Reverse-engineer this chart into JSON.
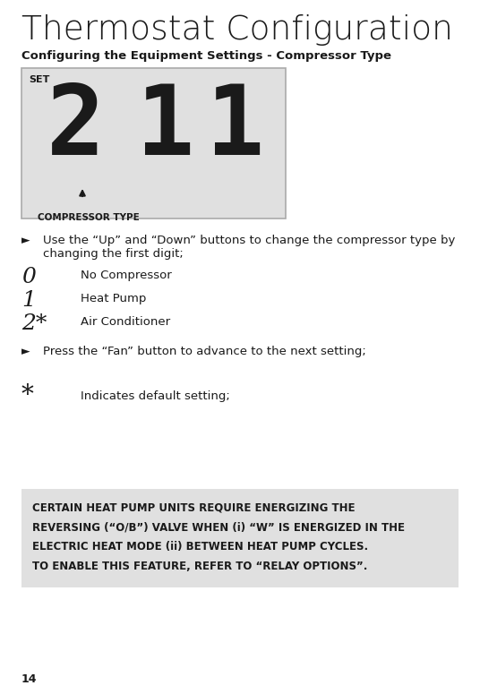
{
  "title": "Thermostat Configuration",
  "subtitle": "Configuring the Equipment Settings - Compressor Type",
  "display_set": "SET",
  "digit2": "2",
  "digit1a": "1",
  "digit1b": "1",
  "display_label": "COMPRESSOR TYPE",
  "bullet1_line1": "Use the “Up” and “Down” buttons to change the compressor type by",
  "bullet1_line2": "changing the first digit;",
  "opt0_code": "0",
  "opt0_desc": "No Compressor",
  "opt1_code": "1",
  "opt1_desc": "Heat Pump",
  "opt2_code": "2*",
  "opt2_desc": "Air Conditioner",
  "bullet2": "Press the “Fan” button to advance to the next setting;",
  "asterisk": "*",
  "asterisk_desc": "Indicates default setting;",
  "note_line1": "CERTAIN HEAT PUMP UNITS REQUIRE ENERGIZING THE",
  "note_line2": "REVERSING (“O/B”) VALVE WHEN (i) “W” IS ENERGIZED IN THE",
  "note_line3": "ELECTRIC HEAT MODE (ii) BETWEEN HEAT PUMP CYCLES.",
  "note_line4": "TO ENABLE THIS FEATURE, REFER TO “RELAY OPTIONS”.",
  "page_number": "14",
  "bg_color": "#ffffff",
  "display_bg": "#e0e0e0",
  "note_bg": "#e0e0e0",
  "text_color": "#1a1a1a",
  "border_color": "#aaaaaa",
  "title_fontsize": 27,
  "subtitle_fontsize": 9.5,
  "display_set_fontsize": 8,
  "digit_fontsize": 78,
  "label_fontsize": 7.5,
  "body_fontsize": 9.5,
  "opt_code_fontsize": 18,
  "note_fontsize": 8.5,
  "page_fontsize": 9
}
